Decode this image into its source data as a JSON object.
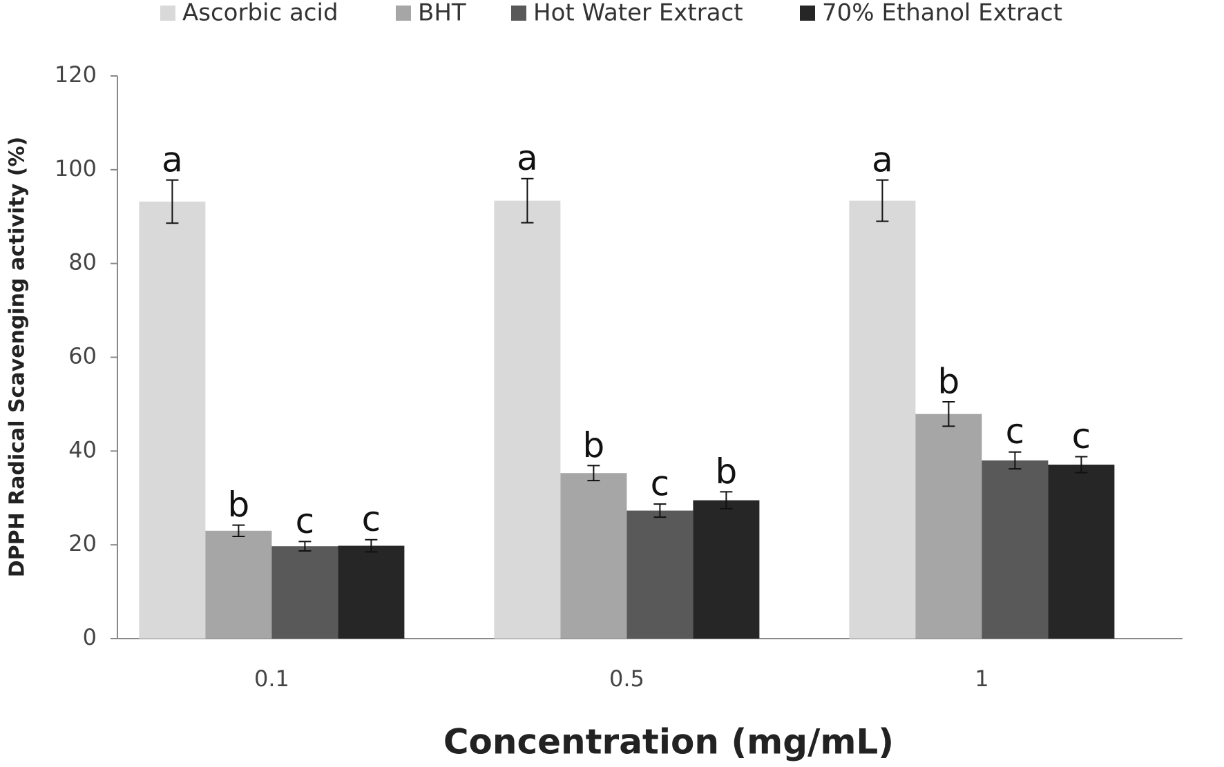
{
  "chart_data": {
    "type": "bar",
    "x_label": "Concentration (mg/mL)",
    "y_label": "DPPH Radical Scavenging activity (%)",
    "categories": [
      "0.1",
      "0.5",
      "1"
    ],
    "series": [
      {
        "name": "Ascorbic acid",
        "color": "#d9d9d9",
        "values": [
          93.2,
          93.4,
          93.4
        ],
        "errors": [
          4.6,
          4.7,
          4.4
        ],
        "significance": [
          "a",
          "a",
          "a"
        ]
      },
      {
        "name": "BHT",
        "color": "#a6a6a6",
        "values": [
          23.0,
          35.3,
          47.9
        ],
        "errors": [
          1.2,
          1.6,
          2.6
        ],
        "significance": [
          "b",
          "b",
          "b"
        ]
      },
      {
        "name": "Hot Water Extract",
        "color": "#595959",
        "values": [
          19.7,
          27.3,
          38.0
        ],
        "errors": [
          1.0,
          1.4,
          1.8
        ],
        "significance": [
          "c",
          "c",
          "c"
        ]
      },
      {
        "name": "70% Ethanol Extract",
        "color": "#262626",
        "values": [
          19.8,
          29.5,
          37.1
        ],
        "errors": [
          1.3,
          1.8,
          1.7
        ],
        "significance": [
          "c",
          "b",
          "c"
        ]
      }
    ],
    "ylim": [
      0,
      120
    ],
    "yticks": [
      0,
      20,
      40,
      60,
      80,
      100,
      120
    ],
    "grid": false
  }
}
